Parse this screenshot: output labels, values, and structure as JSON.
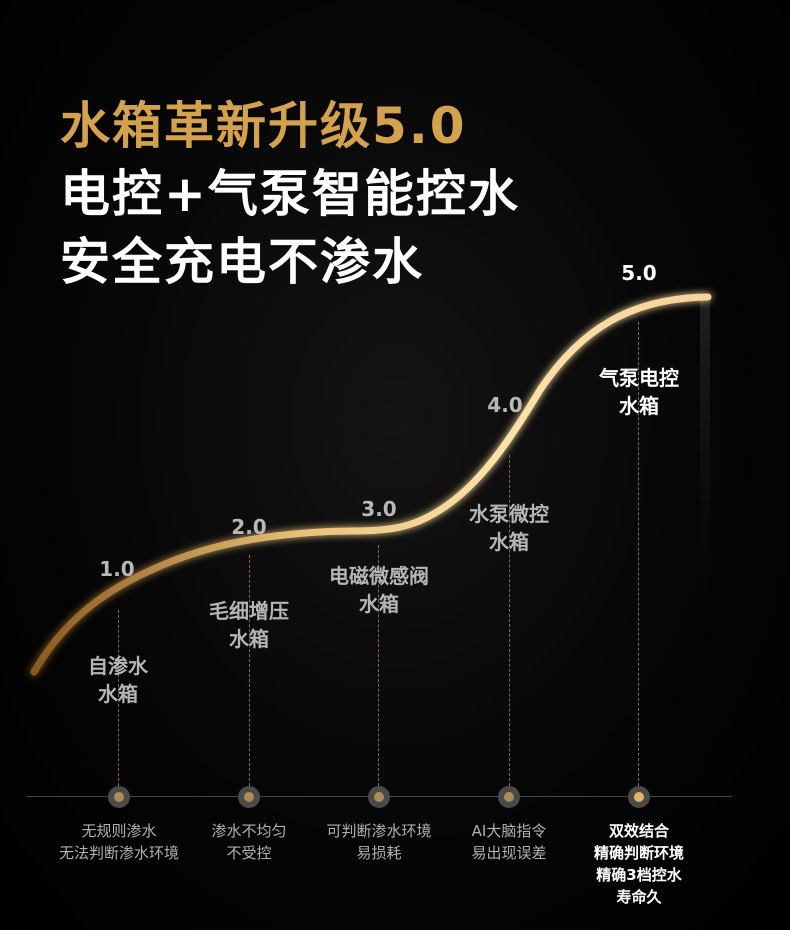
{
  "headline": {
    "line1": "水箱革新升级5.0",
    "line2": "电控+气泵智能控水",
    "line3": "安全充电不渗水"
  },
  "colors": {
    "accent": "#d4a24c",
    "highlight": "#ffffff",
    "muted": "#b5b5b5"
  },
  "stages": [
    {
      "version": "1.0",
      "label1": "自渗水",
      "label2": "水箱",
      "desc": [
        "无规则渗水",
        "无法判断渗水环境"
      ]
    },
    {
      "version": "2.0",
      "label1": "毛细增压",
      "label2": "水箱",
      "desc": [
        "渗水不均匀",
        "不受控"
      ]
    },
    {
      "version": "3.0",
      "label1": "电磁微感阀",
      "label2": "水箱",
      "desc": [
        "可判断渗水环境",
        "易损耗"
      ]
    },
    {
      "version": "4.0",
      "label1": "水泵微控",
      "label2": "水箱",
      "desc": [
        "AI大脑指令",
        "易出现误差"
      ]
    },
    {
      "version": "5.0",
      "label1": "气泵电控",
      "label2": "水箱",
      "desc": [
        "双效结合",
        "精确判断环境",
        "精确3档控水",
        "寿命久"
      ]
    }
  ]
}
